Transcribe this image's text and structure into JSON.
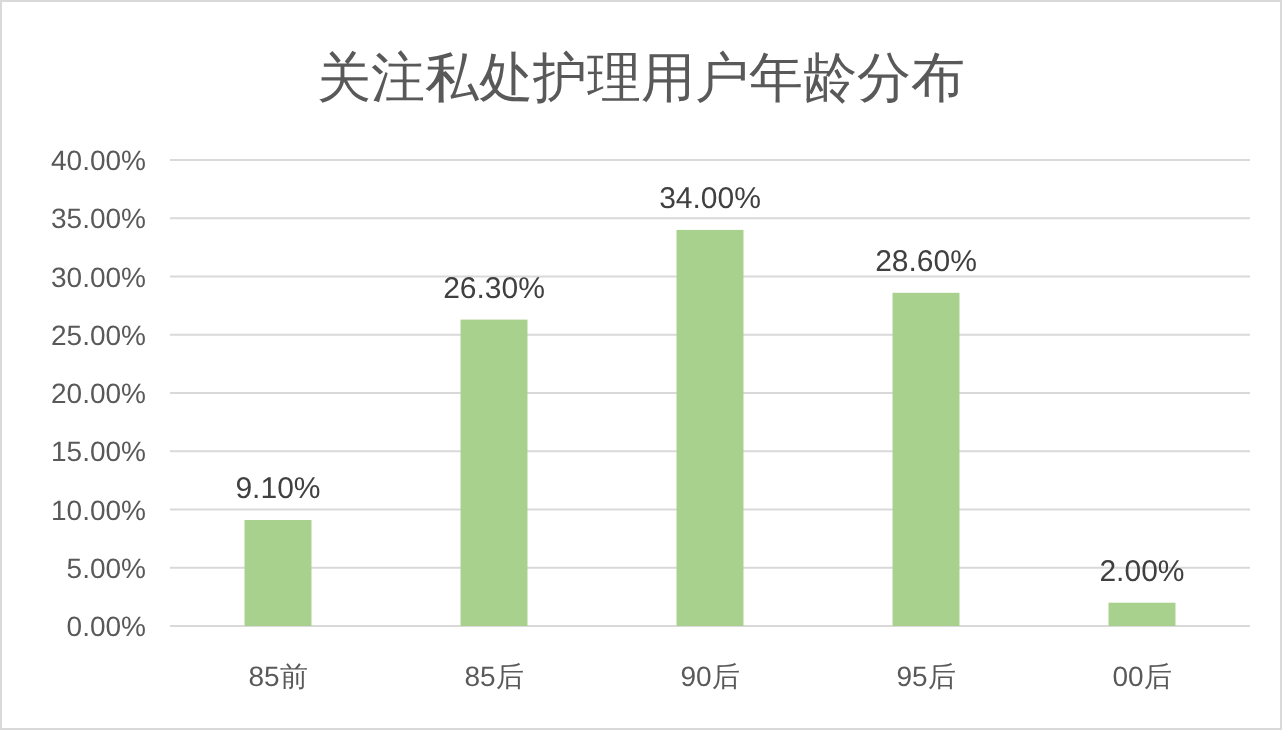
{
  "chart_data": {
    "type": "bar",
    "title": "关注私处护理用户年龄分布",
    "categories": [
      "85前",
      "85后",
      "90后",
      "95后",
      "00后"
    ],
    "values": [
      9.1,
      26.3,
      34.0,
      28.6,
      2.0
    ],
    "value_labels": [
      "9.10%",
      "26.30%",
      "34.00%",
      "28.60%",
      "2.00%"
    ],
    "color": "#a9d18e",
    "ylim": [
      0,
      40
    ],
    "yticks": [
      {
        "value": 0,
        "label": "0.00%"
      },
      {
        "value": 5,
        "label": "5.00%"
      },
      {
        "value": 10,
        "label": "10.00%"
      },
      {
        "value": 15,
        "label": "15.00%"
      },
      {
        "value": 20,
        "label": "20.00%"
      },
      {
        "value": 25,
        "label": "25.00%"
      },
      {
        "value": 30,
        "label": "30.00%"
      },
      {
        "value": 35,
        "label": "35.00%"
      },
      {
        "value": 40,
        "label": "40.00%"
      }
    ],
    "grid": "y"
  }
}
